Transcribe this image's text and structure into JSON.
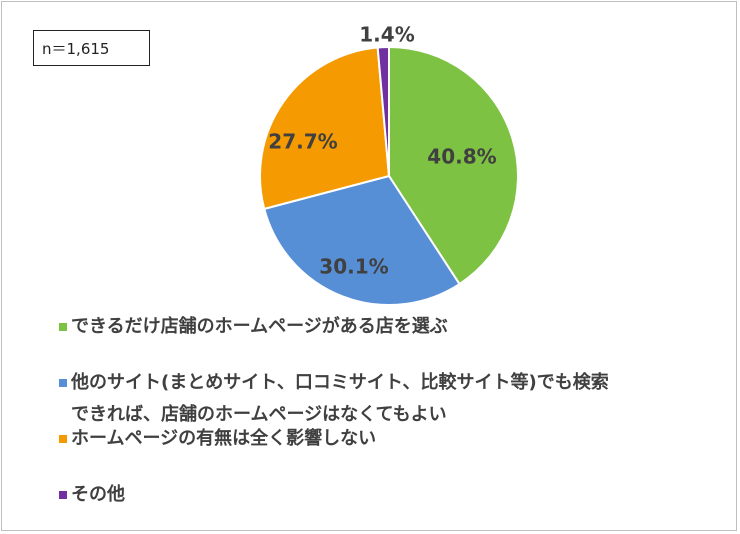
{
  "sample_label": "n＝1,615",
  "chart_data": {
    "type": "pie",
    "title": "",
    "slices": [
      {
        "label": "できるだけ店舗のホームページがある店を選ぶ",
        "value": 40.8,
        "value_label": "40.8%",
        "color": "#7dc242"
      },
      {
        "label": "他のサイト(まとめサイト、口コミサイト、比較サイト等)でも検索できれば、店舗のホームページはなくてもよい",
        "label_line1": "他のサイト(まとめサイト、口コミサイト、比較サイト等)でも検索",
        "label_line2": "できれば、店舗のホームページはなくてもよい",
        "value": 30.1,
        "value_label": "30.1%",
        "color": "#578fd6"
      },
      {
        "label": "ホームページの有無は全く影響しない",
        "value": 27.7,
        "value_label": "27.7%",
        "color": "#f59a00"
      },
      {
        "label": "その他",
        "value": 1.4,
        "value_label": "1.4%",
        "color": "#7030a0"
      }
    ],
    "legend_position": "bottom-left"
  }
}
